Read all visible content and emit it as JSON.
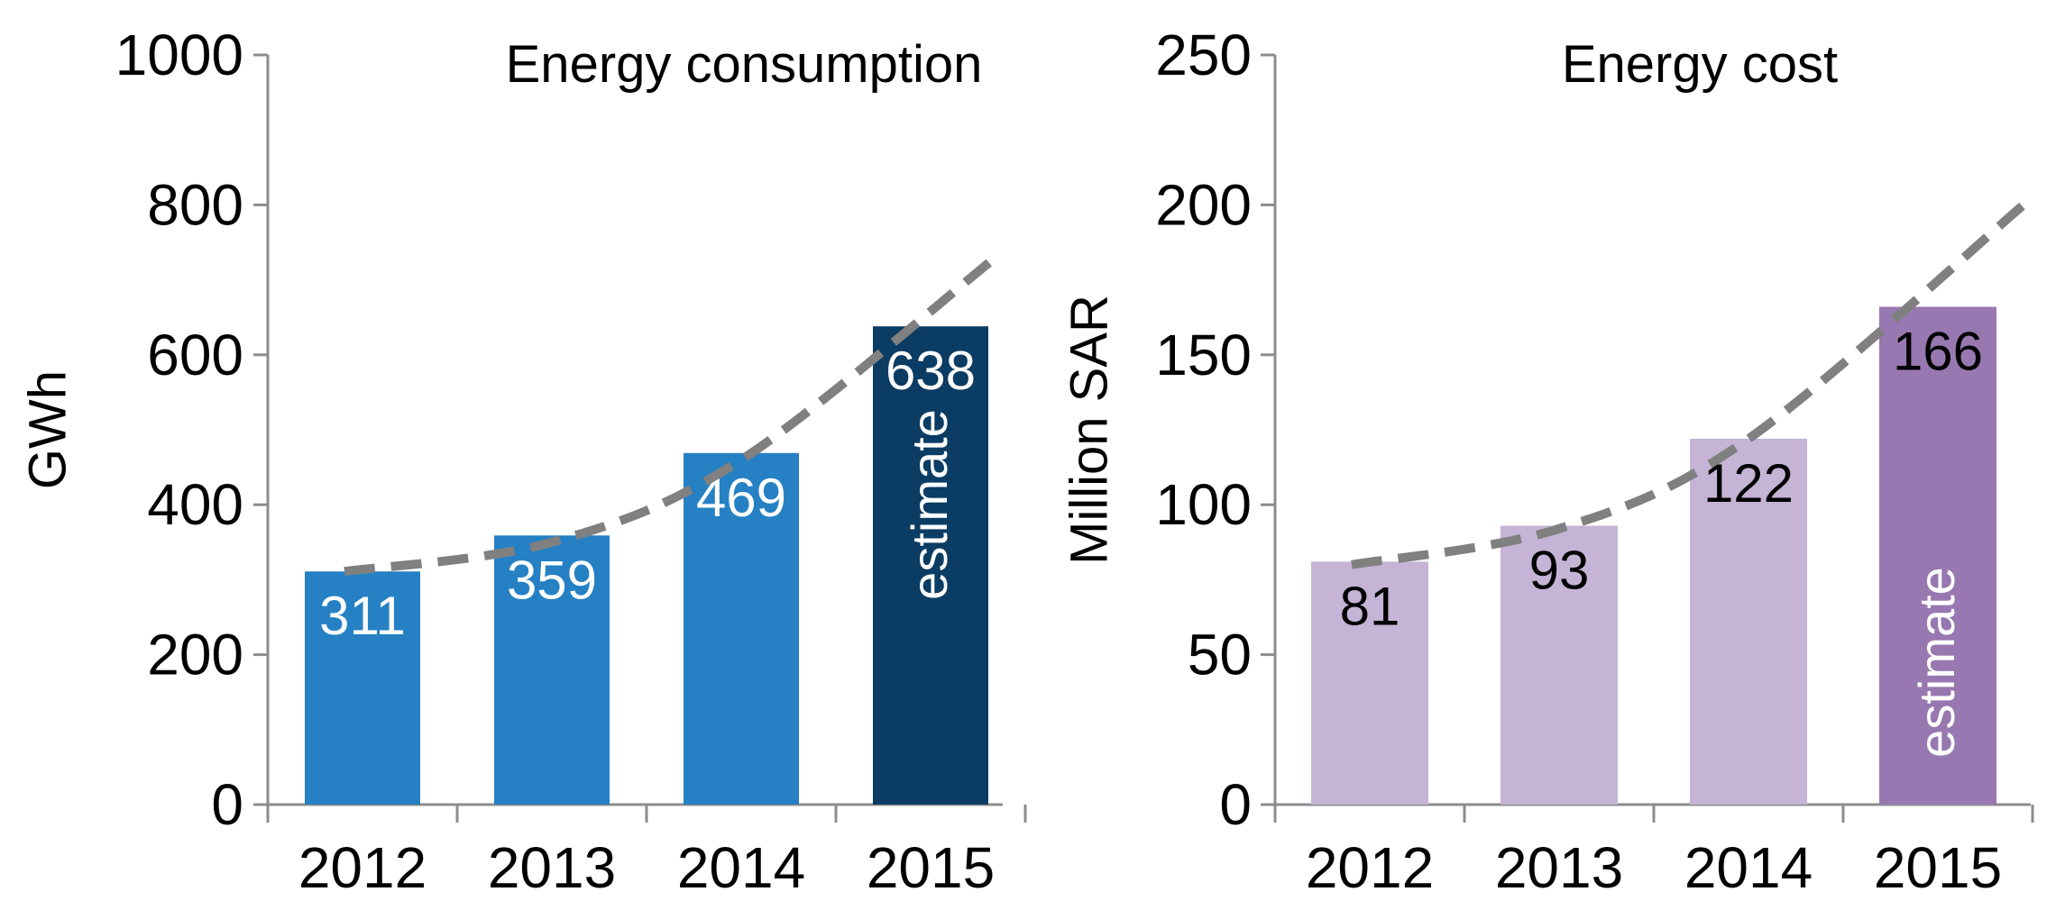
{
  "chart_data": [
    {
      "type": "bar",
      "title": "Energy consumption",
      "xlabel": "",
      "ylabel": "GWh",
      "categories": [
        "2012",
        "2013",
        "2014",
        "2015"
      ],
      "values": [
        311,
        359,
        469,
        638
      ],
      "ylim": [
        0,
        1000
      ],
      "yticks": [
        0,
        200,
        400,
        600,
        800,
        1000
      ],
      "bar_labels": [
        "311",
        "359",
        "469",
        "638"
      ],
      "bar_colors": [
        "#2581C4",
        "#2581C4",
        "#2581C4",
        "#0B3C63"
      ],
      "label_color": "#FFFFFF",
      "estimate_note": "estimate",
      "estimate_category": "2015",
      "trend": {
        "style": "dashed",
        "color": "#808080",
        "values": [
          311,
          350,
          460,
          730
        ]
      }
    },
    {
      "type": "bar",
      "title": "Energy cost",
      "xlabel": "",
      "ylabel": "Million SAR",
      "categories": [
        "2012",
        "2013",
        "2014",
        "2015"
      ],
      "values": [
        81,
        93,
        122,
        166
      ],
      "ylim": [
        0,
        250
      ],
      "yticks": [
        0,
        50,
        100,
        150,
        200,
        250
      ],
      "bar_labels": [
        "81",
        "93",
        "122",
        "166"
      ],
      "bar_colors": [
        "#C5B4D6",
        "#C5B4D6",
        "#C5B4D6",
        "#9878B0"
      ],
      "label_color": "#000000",
      "estimate_note": "estimate",
      "estimate_category": "2015",
      "trend": {
        "style": "dashed",
        "color": "#808080",
        "values": [
          80,
          92,
          122,
          200
        ]
      }
    }
  ]
}
